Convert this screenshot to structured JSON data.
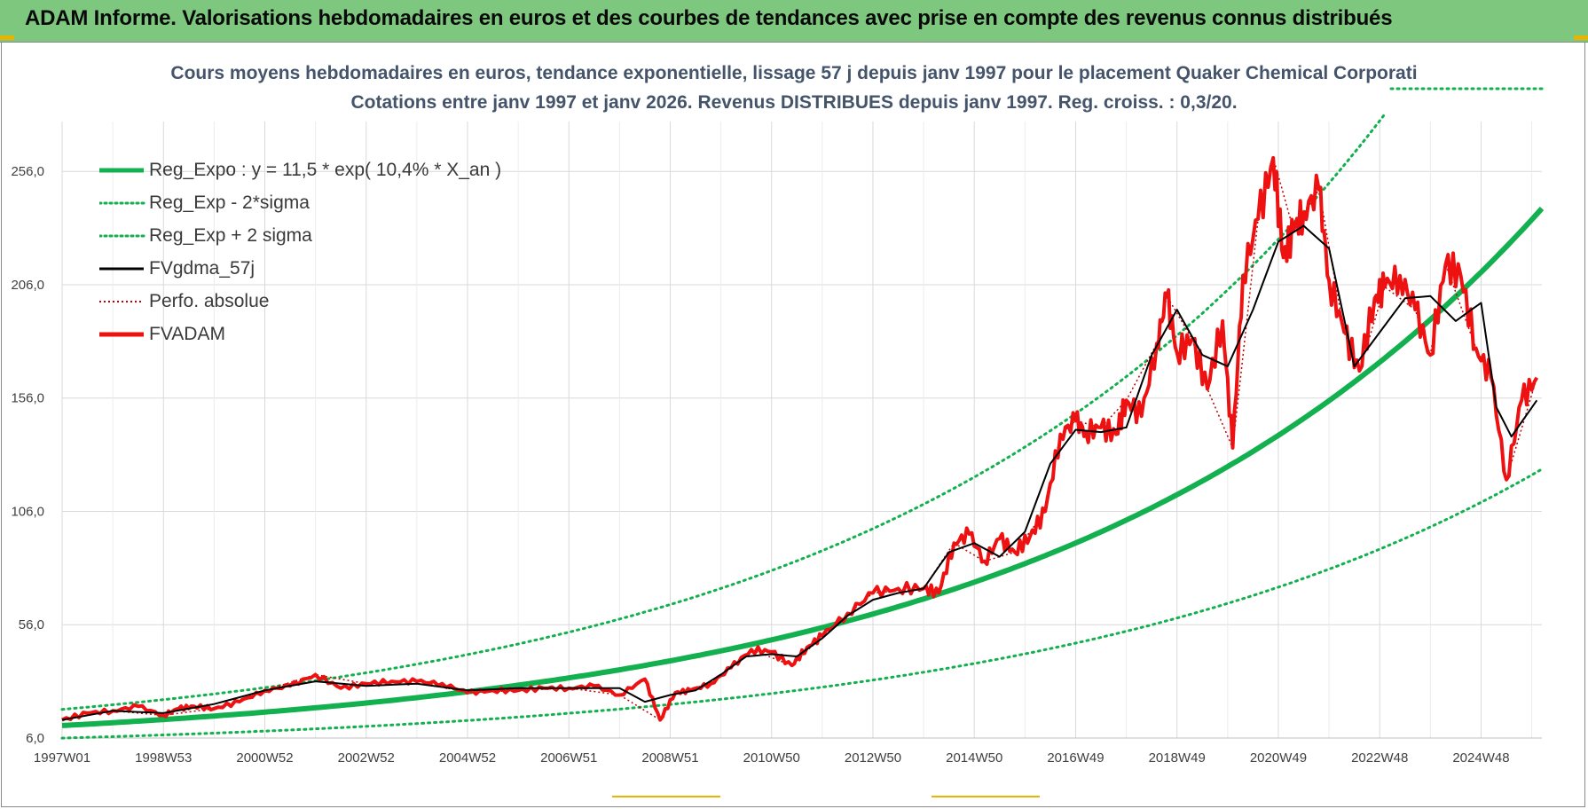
{
  "banner": {
    "title": "ADAM Informe. Valorisations hebdomadaires en euros et des courbes de tendances avec prise en compte des revenus connus distribués",
    "background": "#7dc77f"
  },
  "chart_data": {
    "type": "line",
    "title_line1": "Cours moyens hebdomadaires en euros, tendance exponentielle, lissage 57 j depuis janv 1997 pour le placement Quaker Chemical Corporati",
    "title_line2": "Cotations entre janv 1997 et janv 2026. Revenus DISTRIBUES depuis janv 1997. Reg. croiss. : 0,3/20.",
    "ylim": [
      6,
      278
    ],
    "xlim": [
      1997.0,
      2026.2
    ],
    "y_ticks": [
      {
        "value": 6,
        "label": "6,0"
      },
      {
        "value": 56,
        "label": "56,0"
      },
      {
        "value": 106,
        "label": "106,0"
      },
      {
        "value": 156,
        "label": "156,0"
      },
      {
        "value": 206,
        "label": "206,0"
      },
      {
        "value": 256,
        "label": "256,0"
      }
    ],
    "x_ticks": [
      {
        "value": 1997.0,
        "label": "1997W01"
      },
      {
        "value": 1999.0,
        "label": "1998W53"
      },
      {
        "value": 2001.0,
        "label": "2000W52"
      },
      {
        "value": 2003.0,
        "label": "2002W52"
      },
      {
        "value": 2005.0,
        "label": "2004W52"
      },
      {
        "value": 2007.0,
        "label": "2006W51"
      },
      {
        "value": 2009.0,
        "label": "2008W51"
      },
      {
        "value": 2011.0,
        "label": "2010W50"
      },
      {
        "value": 2013.0,
        "label": "2012W50"
      },
      {
        "value": 2015.0,
        "label": "2014W50"
      },
      {
        "value": 2017.0,
        "label": "2016W49"
      },
      {
        "value": 2019.0,
        "label": "2018W49"
      },
      {
        "value": 2021.0,
        "label": "2020W49"
      },
      {
        "value": 2023.0,
        "label": "2022W48"
      },
      {
        "value": 2025.0,
        "label": "2024W48"
      }
    ],
    "trend": {
      "a": 11.5,
      "rate": 0.104,
      "start_year": 1997.0
    },
    "legend": [
      {
        "name": "Reg_Expo : y = 11,5 * exp( 10,4% *  X_an )",
        "color": "#12b04e",
        "style": "solid-thick"
      },
      {
        "name": "Reg_Exp - 2*sigma",
        "color": "#12b04e",
        "style": "dotted"
      },
      {
        "name": "Reg_Exp + 2 sigma",
        "color": "#12b04e",
        "style": "dotted"
      },
      {
        "name": "FVgdma_57j",
        "color": "#000000",
        "style": "solid"
      },
      {
        "name": "Perfo. absolue",
        "color": "#c00000",
        "style": "dotted"
      },
      {
        "name": "FVADAM",
        "color": "#ee1111",
        "style": "solid-thick"
      }
    ],
    "series": [
      {
        "name": "FVADAM",
        "x": [
          1997.0,
          1997.5,
          1998.0,
          1998.5,
          1999.0,
          1999.3,
          1999.6,
          2000.0,
          2000.5,
          2001.0,
          2001.5,
          2002.0,
          2002.5,
          2003.0,
          2003.5,
          2004.0,
          2004.5,
          2005.0,
          2005.5,
          2006.0,
          2006.5,
          2007.0,
          2007.5,
          2008.0,
          2008.5,
          2008.8,
          2009.1,
          2009.4,
          2009.8,
          2010.2,
          2010.6,
          2011.0,
          2011.4,
          2011.7,
          2012.0,
          2012.5,
          2013.0,
          2013.5,
          2014.0,
          2014.3,
          2014.6,
          2014.9,
          2015.2,
          2015.5,
          2015.8,
          2016.1,
          2016.4,
          2016.7,
          2017.0,
          2017.2,
          2017.5,
          2017.8,
          2018.0,
          2018.3,
          2018.6,
          2018.8,
          2019.0,
          2019.3,
          2019.6,
          2019.9,
          2020.1,
          2020.3,
          2020.6,
          2020.9,
          2021.1,
          2021.3,
          2021.5,
          2021.8,
          2022.0,
          2022.3,
          2022.6,
          2022.9,
          2023.1,
          2023.4,
          2023.7,
          2024.0,
          2024.3,
          2024.6,
          2024.9,
          2025.2,
          2025.5,
          2025.8,
          2026.1
        ],
        "y": [
          14,
          17,
          18,
          20,
          16,
          19,
          20,
          19,
          22,
          27,
          29,
          34,
          28,
          30,
          31,
          31,
          30,
          26,
          27,
          27,
          28,
          28,
          29,
          25,
          32,
          14,
          26,
          27,
          30,
          37,
          45,
          44,
          38,
          46,
          51,
          61,
          70,
          72,
          72,
          70,
          92,
          96,
          84,
          94,
          88,
          95,
          106,
          140,
          146,
          141,
          143,
          140,
          155,
          148,
          180,
          201,
          176,
          182,
          160,
          190,
          134,
          210,
          235,
          262,
          218,
          230,
          238,
          248,
          208,
          185,
          168,
          200,
          205,
          210,
          195,
          175,
          215,
          210,
          178,
          165,
          120,
          155,
          165
        ],
        "color": "#ee1111"
      },
      {
        "name": "FVgdma_57j",
        "x": [
          1997.0,
          1998.0,
          1999.0,
          2000.0,
          2001.0,
          2002.0,
          2003.0,
          2004.0,
          2005.0,
          2006.0,
          2007.0,
          2008.0,
          2008.5,
          2009.0,
          2009.5,
          2010.0,
          2010.5,
          2011.0,
          2011.5,
          2012.0,
          2012.5,
          2013.0,
          2013.5,
          2014.0,
          2014.5,
          2015.0,
          2015.5,
          2016.0,
          2016.5,
          2017.0,
          2017.5,
          2018.0,
          2018.5,
          2019.0,
          2019.5,
          2020.0,
          2020.5,
          2021.0,
          2021.5,
          2022.0,
          2022.5,
          2023.0,
          2023.5,
          2024.0,
          2024.5,
          2025.0,
          2025.3,
          2025.6,
          2026.1
        ],
        "y": [
          14,
          18,
          17,
          21,
          27,
          31,
          29,
          30,
          27,
          28,
          28,
          28,
          22,
          25,
          27,
          34,
          42,
          43,
          42,
          50,
          60,
          67,
          70,
          72,
          88,
          92,
          86,
          97,
          127,
          142,
          141,
          143,
          175,
          195,
          175,
          170,
          195,
          225,
          232,
          222,
          170,
          185,
          200,
          201,
          190,
          198,
          152,
          139,
          155
        ],
        "color": "#000000"
      },
      {
        "name": "Perfo. absolue",
        "x": [
          1997.0,
          1998.0,
          1999.0,
          2000.0,
          2001.0,
          2002.0,
          2003.0,
          2004.0,
          2005.0,
          2006.0,
          2007.0,
          2008.0,
          2008.8,
          2009.1,
          2009.8,
          2010.6,
          2011.4,
          2012.0,
          2013.0,
          2014.0,
          2014.6,
          2015.2,
          2015.8,
          2016.4,
          2016.7,
          2017.0,
          2017.5,
          2018.0,
          2018.6,
          2018.8,
          2019.3,
          2019.6,
          2020.1,
          2020.6,
          2020.9,
          2021.3,
          2021.8,
          2022.3,
          2022.6,
          2023.1,
          2023.7,
          2024.0,
          2024.3,
          2024.9,
          2025.2,
          2025.5,
          2026.1
        ],
        "y": [
          14,
          18,
          16,
          19,
          27,
          34,
          30,
          31,
          26,
          27,
          28,
          25,
          14,
          26,
          30,
          45,
          38,
          51,
          70,
          72,
          92,
          84,
          88,
          106,
          140,
          146,
          143,
          155,
          180,
          201,
          182,
          160,
          134,
          235,
          262,
          230,
          248,
          185,
          168,
          205,
          195,
          175,
          215,
          178,
          165,
          120,
          165
        ],
        "color": "#c00000"
      }
    ]
  }
}
